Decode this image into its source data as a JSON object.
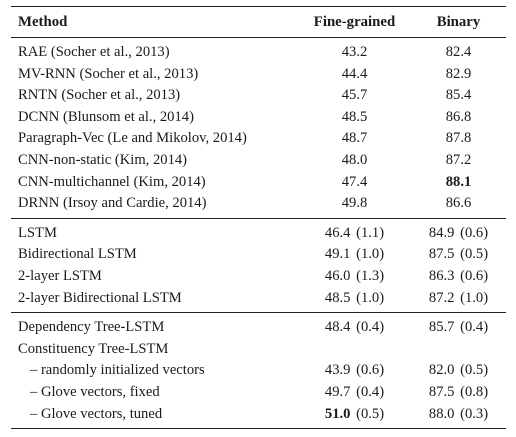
{
  "table": {
    "headers": {
      "method": "Method",
      "fine": "Fine-grained",
      "binary": "Binary"
    },
    "groups": [
      {
        "rows": [
          {
            "method": "RAE (Socher et al., 2013)",
            "fine": "43.2",
            "binary": "82.4"
          },
          {
            "method": "MV-RNN (Socher et al., 2013)",
            "fine": "44.4",
            "binary": "82.9"
          },
          {
            "method": "RNTN (Socher et al., 2013)",
            "fine": "45.7",
            "binary": "85.4"
          },
          {
            "method": "DCNN (Blunsom et al., 2014)",
            "fine": "48.5",
            "binary": "86.8"
          },
          {
            "method": "Paragraph-Vec (Le and Mikolov, 2014)",
            "fine": "48.7",
            "binary": "87.8"
          },
          {
            "method": "CNN-non-static (Kim, 2014)",
            "fine": "48.0",
            "binary": "87.2"
          },
          {
            "method": "CNN-multichannel (Kim, 2014)",
            "fine": "47.4",
            "binary": "88.1",
            "binary_bold": true
          },
          {
            "method": "DRNN (Irsoy and Cardie, 2014)",
            "fine": "49.8",
            "binary": "86.6"
          }
        ]
      },
      {
        "rows": [
          {
            "method": "LSTM",
            "fine": "46.4",
            "fine_sd": "(1.1)",
            "binary": "84.9",
            "binary_sd": "(0.6)"
          },
          {
            "method": "Bidirectional LSTM",
            "fine": "49.1",
            "fine_sd": "(1.0)",
            "binary": "87.5",
            "binary_sd": "(0.5)"
          },
          {
            "method": "2-layer LSTM",
            "fine": "46.0",
            "fine_sd": "(1.3)",
            "binary": "86.3",
            "binary_sd": "(0.6)"
          },
          {
            "method": "2-layer Bidirectional LSTM",
            "fine": "48.5",
            "fine_sd": "(1.0)",
            "binary": "87.2",
            "binary_sd": "(1.0)"
          }
        ]
      },
      {
        "rows": [
          {
            "method": "Dependency Tree-LSTM",
            "fine": "48.4",
            "fine_sd": "(0.4)",
            "binary": "85.7",
            "binary_sd": "(0.4)"
          },
          {
            "method": "Constituency Tree-LSTM"
          },
          {
            "method": "– randomly initialized vectors",
            "indent": true,
            "fine": "43.9",
            "fine_sd": "(0.6)",
            "binary": "82.0",
            "binary_sd": "(0.5)"
          },
          {
            "method": "– Glove vectors, fixed",
            "indent": true,
            "fine": "49.7",
            "fine_sd": "(0.4)",
            "binary": "87.5",
            "binary_sd": "(0.8)"
          },
          {
            "method": "– Glove vectors, tuned",
            "indent": true,
            "fine": "51.0",
            "fine_bold": true,
            "fine_sd": "(0.5)",
            "binary": "88.0",
            "binary_sd": "(0.3)"
          }
        ]
      }
    ]
  }
}
